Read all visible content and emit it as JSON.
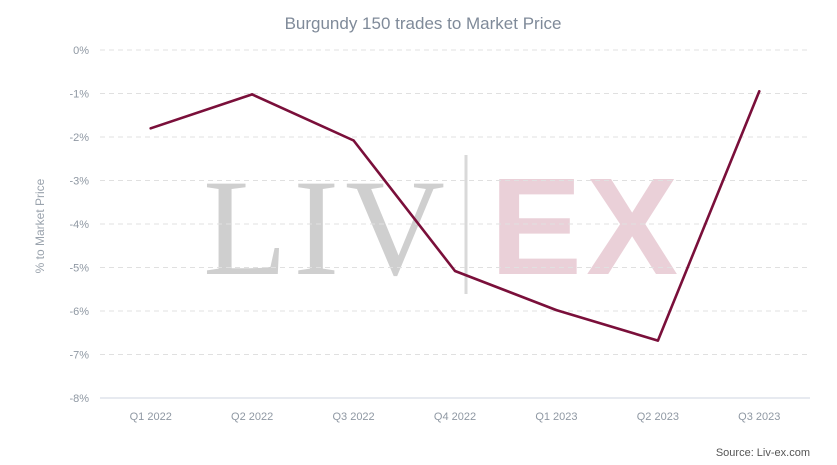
{
  "chart_data": {
    "type": "line",
    "title": "Burgundy 150 trades to Market Price",
    "ylabel": "% to Market Price",
    "xlabel": "",
    "categories": [
      "Q1 2022",
      "Q2 2022",
      "Q3 2022",
      "Q4 2022",
      "Q1 2023",
      "Q2 2023",
      "Q3 2023"
    ],
    "series": [
      {
        "values": [
          -1.8,
          -1.02,
          -2.08,
          -5.08,
          -5.98,
          -6.68,
          -0.95
        ]
      }
    ],
    "yticks": [
      0,
      -1,
      -2,
      -3,
      -4,
      -5,
      -6,
      -7,
      -8
    ],
    "ytick_labels": [
      "0%",
      "-1%",
      "-2%",
      "-3%",
      "-4%",
      "-5%",
      "-6%",
      "-7%",
      "-8%"
    ],
    "ylim": [
      -8,
      0
    ],
    "grid": true,
    "legend": "none",
    "colors": {
      "series": "#7a0f3a"
    }
  },
  "watermark": {
    "left_text": "LIV",
    "right_text": "EX"
  },
  "source": "Source: Liv-ex.com"
}
